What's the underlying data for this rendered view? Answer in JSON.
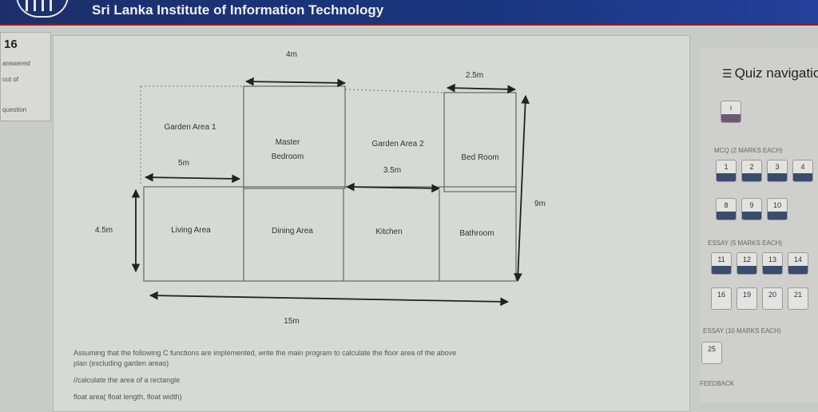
{
  "header": {
    "site_title": "Sri Lanka Institute of Information Technology"
  },
  "left_panel": {
    "question_number": "16",
    "status": "answered",
    "marks_label": "out of",
    "flag": "question"
  },
  "floor_plan": {
    "rooms": {
      "garden1": "Garden Area 1",
      "master1": "Master",
      "master2": "Bedroom",
      "garden2": "Garden Area 2",
      "bedroom": "Bed Room",
      "living": "Living Area",
      "dining": "Dining Area",
      "kitchen": "Kitchen",
      "bathroom": "Bathroom"
    },
    "dims": {
      "top_4m": "4m",
      "top_25m": "2.5m",
      "garden_5m": "5m",
      "kitchen_35m": "3.5m",
      "height_9m": "9m",
      "height_45m": "4.5m",
      "width_15m": "15m"
    }
  },
  "question": {
    "line1": "Assuming that the following C functions are implemented, write the main program to calculate the floor area of the above",
    "line2": "plan (excluding garden areas)",
    "line3": "//calculate the area of a rectangle",
    "line4": "float area( float length, float width)"
  },
  "quiz_nav": {
    "title": "Quiz navigation",
    "sections": {
      "mcq": "MCQ (2 MARKS EACH)",
      "essay": "ESSAY (5 MARKS EACH)",
      "essay2": "ESSAY (10 MARKS EACH)",
      "feedback": "FEEDBACK"
    },
    "intro": "i",
    "row1": [
      "1",
      "2",
      "3",
      "4"
    ],
    "row2": [
      "8",
      "9",
      "10"
    ],
    "row3": [
      "11",
      "12",
      "13",
      "14"
    ],
    "row4": [
      "16",
      "19",
      "20",
      "21"
    ],
    "row5": [
      "25"
    ]
  }
}
